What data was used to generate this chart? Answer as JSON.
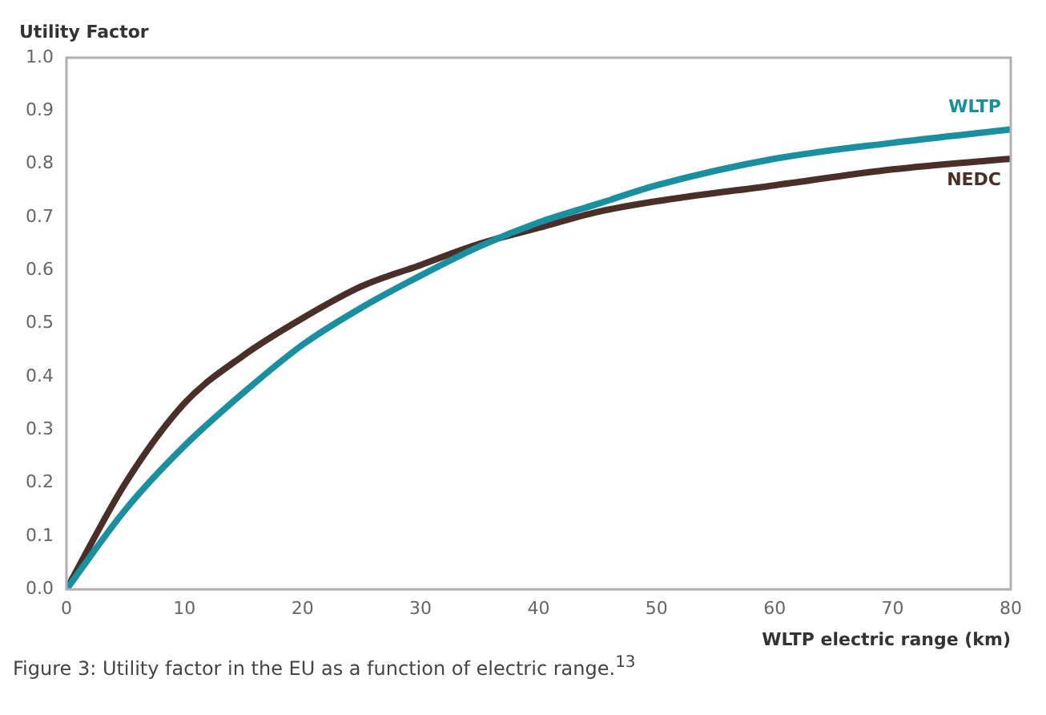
{
  "chart_data": {
    "type": "line",
    "ylabel": "Utility Factor",
    "xlabel": "WLTP electric range (km)",
    "annotations": [
      "Figure 3: Utility factor in the EU as a function of electric range.$^{13}$"
    ],
    "x": [
      0,
      5,
      10,
      15,
      20,
      25,
      30,
      35,
      40,
      45,
      50,
      60,
      70,
      80
    ],
    "series": [
      {
        "name": "WLTP",
        "color": "#1a8fa0",
        "values": [
          0,
          0.15,
          0.27,
          0.37,
          0.46,
          0.53,
          0.59,
          0.645,
          0.69,
          0.725,
          0.76,
          0.81,
          0.84,
          0.865
        ]
      },
      {
        "name": "NEDC",
        "color": "#4a2e28",
        "values": [
          0,
          0.2,
          0.35,
          0.44,
          0.51,
          0.57,
          0.61,
          0.65,
          0.68,
          0.71,
          0.73,
          0.76,
          0.79,
          0.81
        ]
      }
    ],
    "xlim": [
      0,
      80
    ],
    "xticks": [
      0,
      10,
      20,
      30,
      40,
      50,
      60,
      70,
      80
    ],
    "ylim": [
      0,
      1
    ],
    "yticks": [
      {
        "value": 0,
        "label": "0.0"
      },
      0.1,
      0.2,
      0.3,
      0.4,
      0.5,
      0.6,
      0.7,
      0.8,
      0.9,
      {
        "value": 1,
        "label": "1.0"
      }
    ],
    "grid": false,
    "legend": false,
    "marker": "none",
    "line_style": "solid"
  }
}
